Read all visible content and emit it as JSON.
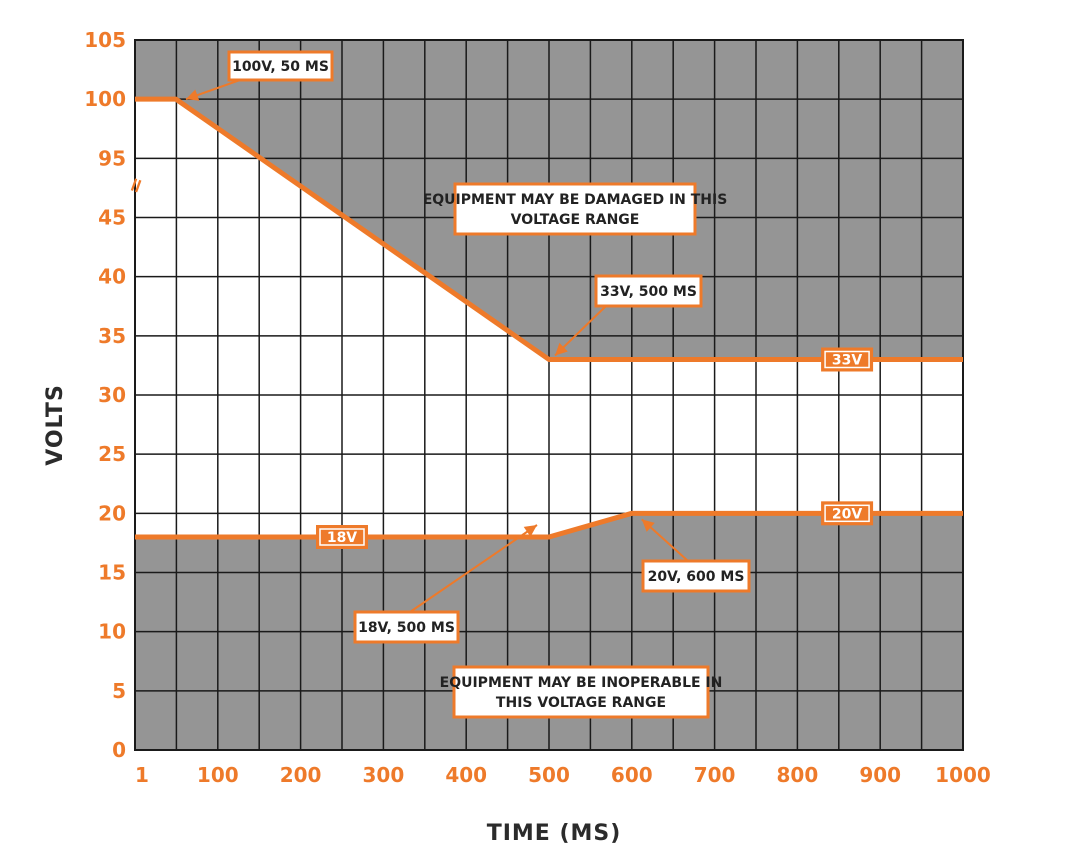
{
  "chart_data": {
    "type": "line",
    "xlabel": "TIME (MS)",
    "ylabel": "VOLTS",
    "x_ticks": [
      "1",
      "100",
      "200",
      "300",
      "400",
      "500",
      "600",
      "700",
      "800",
      "900",
      "1000"
    ],
    "y_ticks": [
      "0",
      "5",
      "10",
      "15",
      "20",
      "25",
      "30",
      "35",
      "40",
      "45",
      "95",
      "100",
      "105"
    ],
    "y_break_marker": "=",
    "xlim": [
      1,
      1000
    ],
    "ylim": [
      0,
      105
    ],
    "grid": true,
    "colors": {
      "line": "#ee7a2a",
      "region": "#959595",
      "grid": "#1a1a1a"
    },
    "series": [
      {
        "x": [
          1,
          50,
          500,
          1000
        ],
        "y": [
          100,
          100,
          33,
          33
        ]
      },
      {
        "x": [
          1,
          500,
          600,
          1000
        ],
        "y": [
          18,
          18,
          20,
          20
        ]
      }
    ],
    "regions": [
      {
        "label": "EQUIPMENT MAY BE DAMAGED IN THIS VOLTAGE RANGE",
        "bound": "above upper series"
      },
      {
        "label": "EQUIPMENT MAY BE INOPERABLE IN THIS VOLTAGE RANGE",
        "bound": "below lower series"
      }
    ],
    "annotations": [
      {
        "lines": [
          "100V, 50 MS"
        ],
        "point": [
          50,
          100
        ]
      },
      {
        "lines": [
          "EQUIPMENT MAY BE DAMAGED IN THIS",
          "VOLTAGE RANGE"
        ]
      },
      {
        "lines": [
          "33V, 500 MS"
        ],
        "point": [
          500,
          33
        ]
      },
      {
        "lines": [
          "20V, 600 MS"
        ],
        "point": [
          600,
          20
        ]
      },
      {
        "lines": [
          "18V, 500 MS"
        ],
        "point": [
          500,
          18
        ]
      },
      {
        "lines": [
          "EQUIPMENT MAY BE INOPERABLE IN",
          "THIS VOLTAGE RANGE"
        ]
      }
    ],
    "line_tags": [
      {
        "text": "33V",
        "x": 860,
        "y": 33
      },
      {
        "text": "18V",
        "x": 250,
        "y": 18
      },
      {
        "text": "20V",
        "x": 860,
        "y": 20
      }
    ]
  }
}
